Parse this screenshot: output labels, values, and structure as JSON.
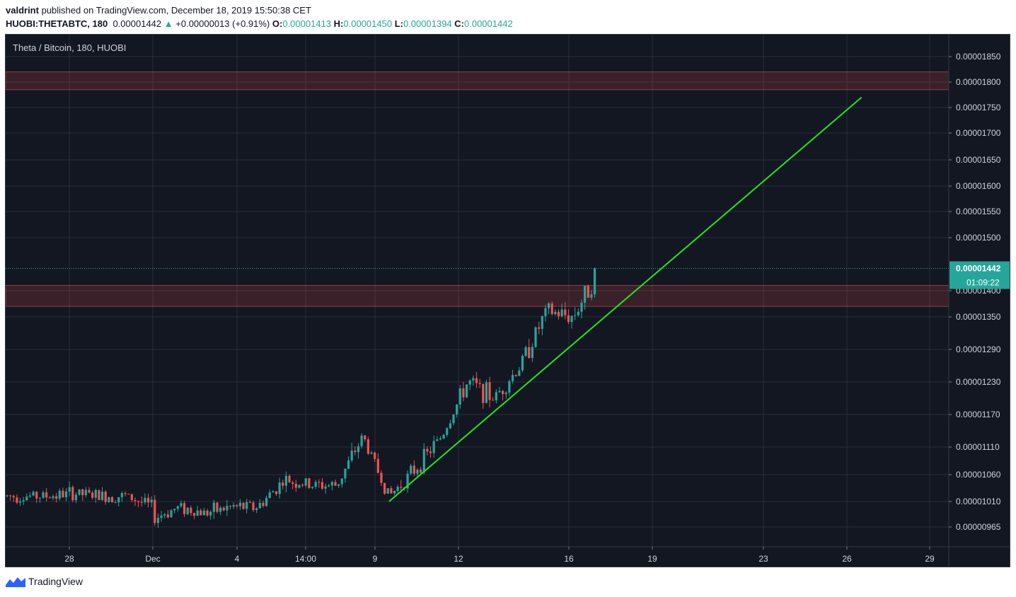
{
  "header": {
    "author": "valdrint",
    "published_text": "published on TradingView.com, December 18, 2019 15:50:38 CET"
  },
  "ticker": {
    "symbol": "HUOBI:THETABTC, 180",
    "last": "0.00001442",
    "arrow": "▲",
    "change": "+0.00000013 (+0.91%)",
    "o_label": "O:",
    "o": "0.00001413",
    "h_label": "H:",
    "h": "0.00001450",
    "l_label": "L:",
    "l": "0.00001394",
    "c_label": "C:",
    "c": "0.00001442"
  },
  "chart_title": "Theta / Bitcoin, 180, HUOBI",
  "footer": {
    "brand": "TradingView",
    "logo_icon": "tradingview-logo-icon"
  },
  "colors": {
    "background": "#131722",
    "grid": "#2a2e39",
    "up": "#26a69a",
    "down": "#ef5350",
    "zone": "#ef5350",
    "trendline": "#22e622",
    "axis_text": "#d1d4dc",
    "last_price_tag": "#26a69a"
  },
  "chart_data": {
    "type": "candlestick",
    "title": "Theta / Bitcoin, 180, HUOBI",
    "interval": "180",
    "xlabel": "",
    "ylabel": "",
    "x_ticks": [
      "28",
      "Dec",
      "4",
      "14:00",
      "9",
      "12",
      "16",
      "19",
      "23",
      "26",
      "29"
    ],
    "y_ticks": [
      "0.00001850",
      "0.00001800",
      "0.00001750",
      "0.00001700",
      "0.00001650",
      "0.00001600",
      "0.00001550",
      "0.00001500",
      "0.00001400",
      "0.00001350",
      "0.00001290",
      "0.00001230",
      "0.00001170",
      "0.00001110",
      "0.00001060",
      "0.00001010",
      "0.00000965"
    ],
    "grid": true,
    "last_price": "0.00001442",
    "countdown": "01:09:22",
    "resistance_zones": [
      {
        "from": 1.785e-05,
        "to": 1.82e-05
      },
      {
        "from": 1.37e-05,
        "to": 1.41e-05
      }
    ],
    "trendline": {
      "start": {
        "date": "Dec 10",
        "price": 1.01e-05
      },
      "end": {
        "date": "Dec 28",
        "price": 1.77e-05
      }
    },
    "price_path": [
      [
        "Nov 26",
        1.02e-05
      ],
      [
        "Nov 27",
        1.025e-05
      ],
      [
        "Nov 28",
        1.02e-05
      ],
      [
        "Nov 29",
        1.02e-05
      ],
      [
        "Nov 30",
        1e-05
      ],
      [
        "Dec 1",
        9.8e-06
      ],
      [
        "Dec 2",
        1e-05
      ],
      [
        "Dec 3",
        9.9e-06
      ],
      [
        "Dec 4",
        1e-05
      ],
      [
        "Dec 5",
        1e-05
      ],
      [
        "Dec 6",
        1.05e-05
      ],
      [
        "Dec 7",
        1.04e-05
      ],
      [
        "Dec 8",
        1.04e-05
      ],
      [
        "Dec 9",
        1.13e-05
      ],
      [
        "Dec 10",
        1.02e-05
      ],
      [
        "Dec 11",
        1.07e-05
      ],
      [
        "Dec 12",
        1.13e-05
      ],
      [
        "Dec 13",
        1.23e-05
      ],
      [
        "Dec 14",
        1.2e-05
      ],
      [
        "Dec 15",
        1.26e-05
      ],
      [
        "Dec 16",
        1.36e-05
      ],
      [
        "Dec 17",
        1.35e-05
      ],
      [
        "Dec 18",
        1.44e-05
      ]
    ]
  }
}
